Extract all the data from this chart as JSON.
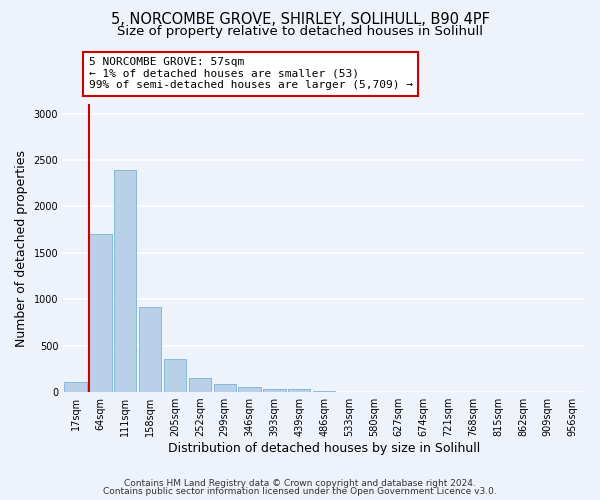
{
  "title_line1": "5, NORCOMBE GROVE, SHIRLEY, SOLIHULL, B90 4PF",
  "title_line2": "Size of property relative to detached houses in Solihull",
  "xlabel": "Distribution of detached houses by size in Solihull",
  "ylabel": "Number of detached properties",
  "categories": [
    "17sqm",
    "64sqm",
    "111sqm",
    "158sqm",
    "205sqm",
    "252sqm",
    "299sqm",
    "346sqm",
    "393sqm",
    "439sqm",
    "486sqm",
    "533sqm",
    "580sqm",
    "627sqm",
    "674sqm",
    "721sqm",
    "768sqm",
    "815sqm",
    "862sqm",
    "909sqm",
    "956sqm"
  ],
  "values": [
    110,
    1700,
    2390,
    920,
    355,
    155,
    85,
    55,
    30,
    30,
    10,
    5,
    5,
    2,
    2,
    1,
    1,
    0,
    0,
    0,
    0
  ],
  "bar_color": "#b8d0e8",
  "bar_edge_color": "#6aaad4",
  "highlight_color": "#cc0000",
  "annotation_text": "5 NORCOMBE GROVE: 57sqm\n← 1% of detached houses are smaller (53)\n99% of semi-detached houses are larger (5,709) →",
  "annotation_box_color": "#ffffff",
  "annotation_box_edge": "#cc0000",
  "ylim": [
    0,
    3100
  ],
  "yticks": [
    0,
    500,
    1000,
    1500,
    2000,
    2500,
    3000
  ],
  "footer_line1": "Contains HM Land Registry data © Crown copyright and database right 2024.",
  "footer_line2": "Contains public sector information licensed under the Open Government Licence v3.0.",
  "background_color": "#eef2fa",
  "plot_bg_color": "#eef2fa",
  "grid_color": "#ffffff",
  "title_fontsize": 10.5,
  "subtitle_fontsize": 9.5,
  "ylabel_fontsize": 9,
  "xlabel_fontsize": 9,
  "tick_fontsize": 7,
  "annotation_fontsize": 8,
  "footer_fontsize": 6.5
}
